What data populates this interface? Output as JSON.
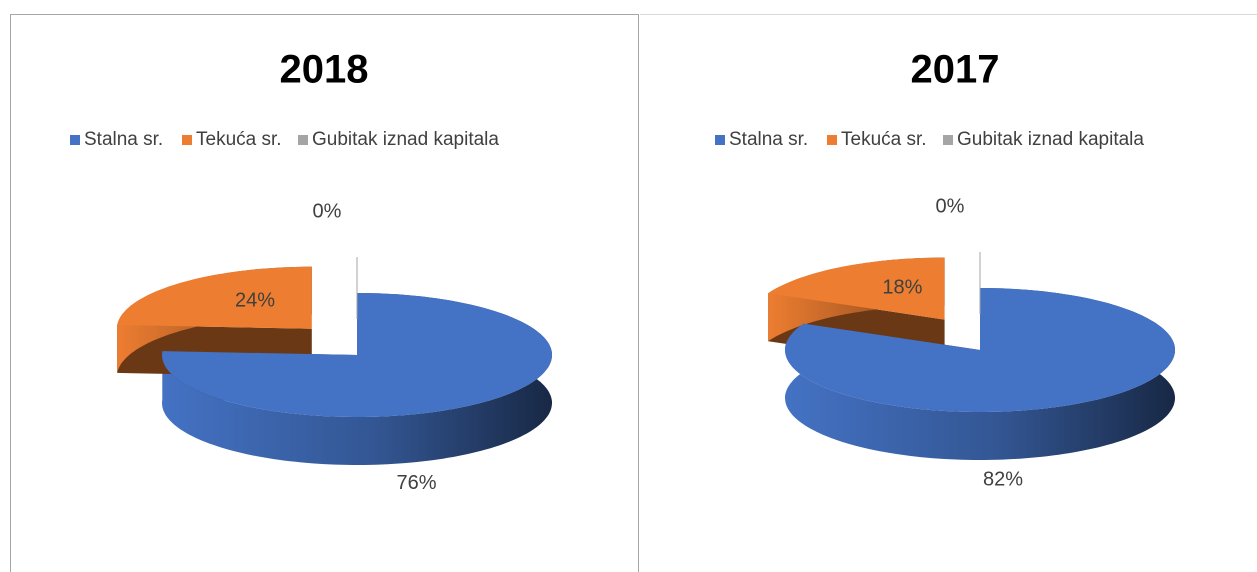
{
  "chart_data": [
    {
      "type": "pie",
      "title": "2018",
      "categories": [
        "Stalna sr.",
        "Tekuća sr.",
        "Gubitak iznad kapitala"
      ],
      "values": [
        76,
        24,
        0
      ],
      "value_labels": [
        "76%",
        "24%",
        "0%"
      ],
      "colors": [
        "#4472c4",
        "#ed7d31",
        "#a5a5a5"
      ],
      "legend": "top"
    },
    {
      "type": "pie",
      "title": "2017",
      "categories": [
        "Stalna sr.",
        "Tekuća sr.",
        "Gubitak iznad kapitala"
      ],
      "values": [
        82,
        18,
        0
      ],
      "value_labels": [
        "82%",
        "18%",
        "0%"
      ],
      "colors": [
        "#4472c4",
        "#ed7d31",
        "#a5a5a5"
      ],
      "legend": "top"
    }
  ]
}
